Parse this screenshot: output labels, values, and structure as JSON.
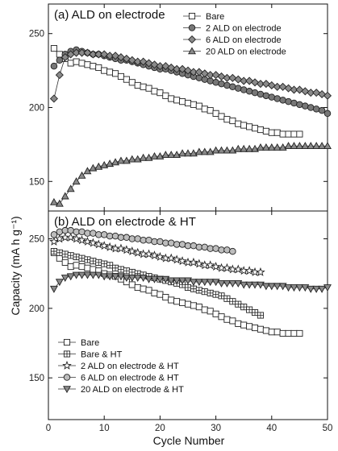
{
  "chart_data": [
    {
      "type": "scatter",
      "title": "(a) ALD on electrode",
      "xlabel": "Cycle Number",
      "ylabel": "Capacity (mA h g⁻¹)",
      "xlim": [
        0,
        50
      ],
      "ylim": [
        130,
        270
      ],
      "x_ticks": [
        "0",
        "10",
        "20",
        "30",
        "40",
        "50"
      ],
      "y_ticks": [
        "150",
        "200",
        "250"
      ],
      "legend_position": "top-right",
      "series": [
        {
          "name": "Bare",
          "marker": "square-open",
          "x": [
            1,
            2,
            3,
            4,
            5,
            6,
            7,
            8,
            9,
            10,
            11,
            12,
            13,
            14,
            15,
            16,
            17,
            18,
            19,
            20,
            21,
            22,
            23,
            24,
            25,
            26,
            27,
            28,
            29,
            30,
            31,
            32,
            33,
            34,
            35,
            36,
            37,
            38,
            39,
            40,
            41,
            42,
            43,
            44,
            45
          ],
          "y": [
            240,
            236,
            233,
            230,
            231,
            230,
            229,
            228,
            227,
            225,
            224,
            223,
            221,
            219,
            217,
            215,
            214,
            213,
            211,
            210,
            208,
            206,
            205,
            204,
            203,
            202,
            201,
            199,
            198,
            196,
            194,
            192,
            191,
            189,
            188,
            187,
            186,
            185,
            184,
            183,
            183,
            182,
            182,
            182,
            182
          ]
        },
        {
          "name": "2 ALD on electrode",
          "marker": "circle-filled",
          "x": [
            1,
            2,
            3,
            4,
            5,
            6,
            7,
            8,
            9,
            10,
            11,
            12,
            13,
            14,
            15,
            16,
            17,
            18,
            19,
            20,
            21,
            22,
            23,
            24,
            25,
            26,
            27,
            28,
            29,
            30,
            31,
            32,
            33,
            34,
            35,
            36,
            37,
            38,
            39,
            40,
            41,
            42,
            43,
            44,
            45,
            46,
            47,
            48,
            49,
            50
          ],
          "y": [
            228,
            232,
            236,
            238,
            239,
            238,
            237,
            236,
            236,
            235,
            234,
            233,
            232,
            232,
            231,
            230,
            229,
            228,
            227,
            226,
            226,
            225,
            224,
            223,
            222,
            221,
            220,
            219,
            218,
            217,
            216,
            215,
            214,
            213,
            212,
            211,
            210,
            209,
            208,
            207,
            206,
            205,
            204,
            203,
            202,
            201,
            200,
            199,
            198,
            196
          ]
        },
        {
          "name": "6 ALD on electrode",
          "marker": "diamond-filled",
          "x": [
            1,
            2,
            3,
            4,
            5,
            6,
            7,
            8,
            9,
            10,
            11,
            12,
            13,
            14,
            15,
            16,
            17,
            18,
            19,
            20,
            21,
            22,
            23,
            24,
            25,
            26,
            27,
            28,
            29,
            30,
            31,
            32,
            33,
            34,
            35,
            36,
            37,
            38,
            39,
            40,
            41,
            42,
            43,
            44,
            45,
            46,
            47,
            48,
            49,
            50
          ],
          "y": [
            206,
            222,
            234,
            236,
            237,
            237,
            237,
            236,
            236,
            236,
            235,
            235,
            234,
            233,
            232,
            231,
            231,
            230,
            229,
            228,
            228,
            227,
            226,
            226,
            225,
            224,
            224,
            223,
            222,
            222,
            221,
            220,
            220,
            219,
            218,
            218,
            217,
            216,
            216,
            215,
            214,
            214,
            213,
            212,
            212,
            211,
            210,
            210,
            209,
            208
          ]
        },
        {
          "name": "20 ALD on electrode",
          "marker": "triangle-up-filled",
          "x": [
            1,
            2,
            3,
            4,
            5,
            6,
            7,
            8,
            9,
            10,
            11,
            12,
            13,
            14,
            15,
            16,
            17,
            18,
            19,
            20,
            21,
            22,
            23,
            24,
            25,
            26,
            27,
            28,
            29,
            30,
            31,
            32,
            33,
            34,
            35,
            36,
            37,
            38,
            39,
            40,
            41,
            42,
            43,
            44,
            45,
            46,
            47,
            48,
            49,
            50
          ],
          "y": [
            136,
            135,
            140,
            145,
            150,
            154,
            157,
            159,
            160,
            161,
            162,
            163,
            164,
            164,
            165,
            165,
            166,
            166,
            167,
            167,
            168,
            168,
            168,
            169,
            169,
            169,
            170,
            170,
            170,
            171,
            171,
            171,
            171,
            172,
            172,
            172,
            172,
            173,
            173,
            173,
            173,
            173,
            174,
            174,
            174,
            174,
            174,
            174,
            174,
            174
          ]
        }
      ]
    },
    {
      "type": "scatter",
      "title": "(b) ALD on electrode & HT",
      "xlabel": "Cycle Number",
      "ylabel": "Capacity (mA h g⁻¹)",
      "xlim": [
        0,
        50
      ],
      "ylim": [
        120,
        270
      ],
      "x_ticks": [
        "0",
        "10",
        "20",
        "30",
        "40",
        "50"
      ],
      "y_ticks": [
        "150",
        "200",
        "250"
      ],
      "legend_position": "bottom-left",
      "series": [
        {
          "name": "Bare",
          "marker": "square-open",
          "x": [
            1,
            2,
            3,
            4,
            5,
            6,
            7,
            8,
            9,
            10,
            11,
            12,
            13,
            14,
            15,
            16,
            17,
            18,
            19,
            20,
            21,
            22,
            23,
            24,
            25,
            26,
            27,
            28,
            29,
            30,
            31,
            32,
            33,
            34,
            35,
            36,
            37,
            38,
            39,
            40,
            41,
            42,
            43,
            44,
            45
          ],
          "y": [
            240,
            236,
            233,
            230,
            231,
            230,
            229,
            228,
            227,
            225,
            224,
            223,
            221,
            219,
            217,
            215,
            214,
            213,
            211,
            210,
            208,
            206,
            205,
            204,
            203,
            202,
            201,
            199,
            198,
            196,
            194,
            192,
            191,
            189,
            188,
            187,
            186,
            185,
            184,
            183,
            183,
            182,
            182,
            182,
            182
          ]
        },
        {
          "name": "Bare & HT",
          "marker": "square-cross",
          "x": [
            1,
            2,
            3,
            4,
            5,
            6,
            7,
            8,
            9,
            10,
            11,
            12,
            13,
            14,
            15,
            16,
            17,
            18,
            19,
            20,
            21,
            22,
            23,
            24,
            25,
            26,
            27,
            28,
            29,
            30,
            31,
            32,
            33,
            34,
            35,
            36,
            37,
            38
          ],
          "y": [
            241,
            240,
            239,
            238,
            237,
            236,
            235,
            234,
            233,
            232,
            231,
            229,
            228,
            227,
            226,
            225,
            224,
            223,
            222,
            221,
            220,
            219,
            218,
            217,
            215,
            214,
            213,
            212,
            211,
            210,
            209,
            207,
            205,
            203,
            201,
            199,
            197,
            195
          ]
        },
        {
          "name": "2 ALD on electrode & HT",
          "marker": "star-open",
          "x": [
            1,
            2,
            3,
            4,
            5,
            6,
            7,
            8,
            9,
            10,
            11,
            12,
            13,
            14,
            15,
            16,
            17,
            18,
            19,
            20,
            21,
            22,
            23,
            24,
            25,
            26,
            27,
            28,
            29,
            30,
            31,
            32,
            33,
            34,
            35,
            36,
            37,
            38
          ],
          "y": [
            248,
            250,
            251,
            251,
            250,
            249,
            248,
            247,
            246,
            245,
            244,
            243,
            243,
            242,
            241,
            240,
            239,
            239,
            238,
            237,
            236,
            236,
            235,
            234,
            233,
            233,
            232,
            231,
            231,
            230,
            229,
            229,
            228,
            228,
            227,
            227,
            226,
            226
          ]
        },
        {
          "name": "6 ALD on electrode & HT",
          "marker": "circle-grey",
          "x": [
            1,
            2,
            3,
            4,
            5,
            6,
            7,
            8,
            9,
            10,
            11,
            12,
            13,
            14,
            15,
            16,
            17,
            18,
            19,
            20,
            21,
            22,
            23,
            24,
            25,
            26,
            27,
            28,
            29,
            30,
            31,
            32,
            33
          ],
          "y": [
            253,
            255,
            256,
            256,
            255,
            255,
            254,
            254,
            253,
            253,
            252,
            252,
            251,
            251,
            250,
            250,
            249,
            249,
            248,
            248,
            247,
            247,
            246,
            246,
            245,
            245,
            244,
            244,
            243,
            243,
            242,
            242,
            241
          ]
        },
        {
          "name": "20 ALD on electrode & HT",
          "marker": "triangle-down-filled",
          "x": [
            1,
            2,
            3,
            4,
            5,
            6,
            7,
            8,
            9,
            10,
            11,
            12,
            13,
            14,
            15,
            16,
            17,
            18,
            19,
            20,
            21,
            22,
            23,
            24,
            25,
            26,
            27,
            28,
            29,
            30,
            31,
            32,
            33,
            34,
            35,
            36,
            37,
            38,
            39,
            40,
            41,
            42,
            43,
            44,
            45,
            46,
            47,
            48,
            49,
            50
          ],
          "y": [
            214,
            219,
            222,
            223,
            224,
            224,
            224,
            224,
            224,
            223,
            223,
            223,
            223,
            222,
            222,
            222,
            222,
            221,
            221,
            221,
            221,
            220,
            220,
            220,
            220,
            219,
            219,
            219,
            219,
            219,
            218,
            218,
            218,
            218,
            217,
            217,
            217,
            217,
            216,
            216,
            216,
            216,
            215,
            215,
            215,
            215,
            214,
            214,
            214,
            215
          ]
        }
      ]
    }
  ]
}
